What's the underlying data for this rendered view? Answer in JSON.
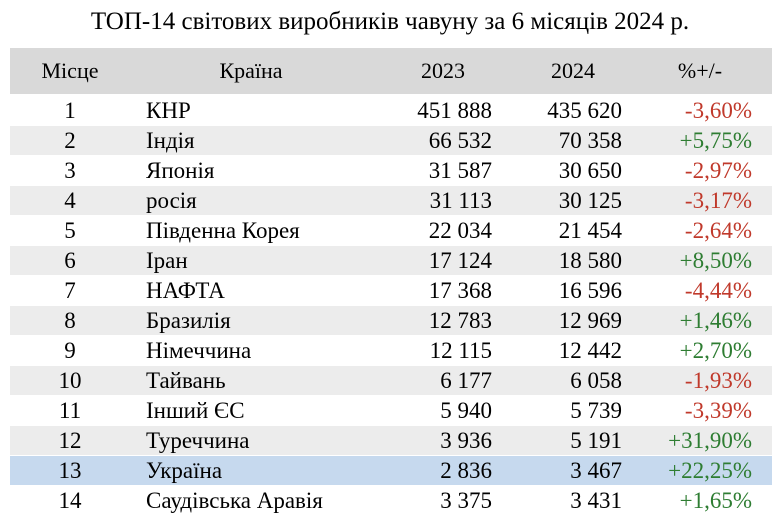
{
  "title": "ТОП-14 світових виробників чавуну за 6 місяців 2024 р.",
  "headers": {
    "rank": "Місце",
    "country": "Країна",
    "y2023": "2023",
    "y2024": "2024",
    "change": "%+/-"
  },
  "colors": {
    "header_bg": "#d9d9d9",
    "alt_row_bg": "#ececec",
    "highlight_row_bg": "#c6d9ee",
    "negative": "#c0392b",
    "positive": "#2e7d32"
  },
  "rows": [
    {
      "rank": "1",
      "country": "КНР",
      "y2023": "451 888",
      "y2024": "435 620",
      "change": "-3,60%"
    },
    {
      "rank": "2",
      "country": "Індія",
      "y2023": "66 532",
      "y2024": "70 358",
      "change": "+5,75%"
    },
    {
      "rank": "3",
      "country": "Японія",
      "y2023": "31 587",
      "y2024": "30 650",
      "change": "-2,97%"
    },
    {
      "rank": "4",
      "country": "росія",
      "y2023": "31 113",
      "y2024": "30 125",
      "change": "-3,17%"
    },
    {
      "rank": "5",
      "country": "Південна Корея",
      "y2023": "22 034",
      "y2024": "21 454",
      "change": "-2,64%"
    },
    {
      "rank": "6",
      "country": "Іран",
      "y2023": "17 124",
      "y2024": "18 580",
      "change": "+8,50%"
    },
    {
      "rank": "7",
      "country": "НАФТА",
      "y2023": "17 368",
      "y2024": "16 596",
      "change": "-4,44%"
    },
    {
      "rank": "8",
      "country": "Бразилія",
      "y2023": "12 783",
      "y2024": "12 969",
      "change": "+1,46%"
    },
    {
      "rank": "9",
      "country": "Німеччина",
      "y2023": "12 115",
      "y2024": "12 442",
      "change": "+2,70%"
    },
    {
      "rank": "10",
      "country": "Тайвань",
      "y2023": "6 177",
      "y2024": "6 058",
      "change": "-1,93%"
    },
    {
      "rank": "11",
      "country": "Інший ЄС",
      "y2023": "5 940",
      "y2024": "5 739",
      "change": "-3,39%"
    },
    {
      "rank": "12",
      "country": "Туреччина",
      "y2023": "3 936",
      "y2024": "5 191",
      "change": "+31,90%"
    },
    {
      "rank": "13",
      "country": "Україна",
      "y2023": "2 836",
      "y2024": "3 467",
      "change": "+22,25%"
    },
    {
      "rank": "14",
      "country": "Саудівська Аравія",
      "y2023": "3 375",
      "y2024": "3 431",
      "change": "+1,65%"
    }
  ]
}
